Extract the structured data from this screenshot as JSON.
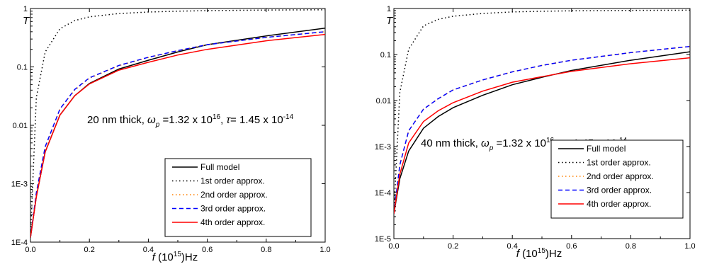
{
  "chart_data": [
    {
      "type": "line",
      "xlabel": "f (10^15)Hz",
      "ylabel": "T",
      "yscale": "log",
      "xlim": [
        0,
        1
      ],
      "ylim": [
        0.0001,
        1
      ],
      "xticks": [
        "0.0",
        "0.2",
        "0.4",
        "0.6",
        "0.8",
        "1.0"
      ],
      "yticks": [
        "1E-4",
        "1E-3",
        "0.01",
        "0.1",
        "1"
      ],
      "annotation": "20 nm thick, ωp =1.32 x 10^16, τ= 1.45 x 10^-14",
      "legend": "bottom-right",
      "x": [
        0.0,
        0.02,
        0.05,
        0.1,
        0.15,
        0.2,
        0.3,
        0.4,
        0.5,
        0.6,
        0.8,
        1.0
      ],
      "series": [
        {
          "name": "Full model",
          "color": "#000000",
          "dash": "solid",
          "values": [
            0.00012,
            0.0006,
            0.0035,
            0.015,
            0.032,
            0.052,
            0.092,
            0.13,
            0.18,
            0.24,
            0.34,
            0.46
          ]
        },
        {
          "name": "1st order approx.",
          "color": "#000000",
          "dash": "dot",
          "values": [
            0.00012,
            0.03,
            0.18,
            0.45,
            0.62,
            0.72,
            0.82,
            0.87,
            0.9,
            0.92,
            0.94,
            0.95
          ]
        },
        {
          "name": "2nd order approx.",
          "color": "#ff8000",
          "dash": "dot",
          "values": [
            0.00012,
            0.0007,
            0.0042,
            0.019,
            0.04,
            0.064,
            0.105,
            0.145,
            0.19,
            0.24,
            0.32,
            0.4
          ]
        },
        {
          "name": "3rd order approx.",
          "color": "#0000ff",
          "dash": "dash",
          "values": [
            0.00012,
            0.0007,
            0.0043,
            0.019,
            0.041,
            0.065,
            0.106,
            0.146,
            0.19,
            0.24,
            0.32,
            0.4
          ]
        },
        {
          "name": "4th order approx.",
          "color": "#ff0000",
          "dash": "solid",
          "values": [
            0.00012,
            0.0006,
            0.0035,
            0.015,
            0.032,
            0.051,
            0.088,
            0.12,
            0.16,
            0.2,
            0.28,
            0.36
          ]
        }
      ]
    },
    {
      "type": "line",
      "xlabel": "f (10^15)Hz",
      "ylabel": "T",
      "yscale": "log",
      "xlim": [
        0,
        1
      ],
      "ylim": [
        1e-05,
        1
      ],
      "xticks": [
        "0.0",
        "0.2",
        "0.4",
        "0.6",
        "0.8",
        "1.0"
      ],
      "yticks": [
        "1E-5",
        "1E-4",
        "1E-3",
        "0.01",
        "0.1",
        "1"
      ],
      "annotation": "40 nm thick, ωp =1.32 x 10^16, τ= 1.45 x 10^-14",
      "legend": "bottom-right",
      "x": [
        0.0,
        0.02,
        0.05,
        0.1,
        0.15,
        0.2,
        0.3,
        0.4,
        0.5,
        0.6,
        0.8,
        1.0
      ],
      "series": [
        {
          "name": "Full model",
          "color": "#000000",
          "dash": "solid",
          "values": [
            3.5e-05,
            0.0002,
            0.0008,
            0.0025,
            0.0045,
            0.007,
            0.013,
            0.022,
            0.032,
            0.045,
            0.075,
            0.115
          ]
        },
        {
          "name": "1st order approx.",
          "color": "#000000",
          "dash": "dot",
          "values": [
            3.5e-05,
            0.015,
            0.13,
            0.42,
            0.58,
            0.68,
            0.78,
            0.84,
            0.87,
            0.89,
            0.91,
            0.92
          ]
        },
        {
          "name": "2nd order approx.",
          "color": "#ff8000",
          "dash": "dot",
          "values": [
            3.5e-05,
            0.0004,
            0.0022,
            0.0065,
            0.011,
            0.017,
            0.028,
            0.042,
            0.058,
            0.075,
            0.11,
            0.15
          ]
        },
        {
          "name": "3rd order approx.",
          "color": "#0000ff",
          "dash": "dash",
          "values": [
            3.5e-05,
            0.0004,
            0.0022,
            0.0065,
            0.011,
            0.017,
            0.028,
            0.042,
            0.058,
            0.075,
            0.11,
            0.15
          ]
        },
        {
          "name": "4th order approx.",
          "color": "#ff0000",
          "dash": "solid",
          "values": [
            3.5e-05,
            0.00025,
            0.0012,
            0.0035,
            0.006,
            0.009,
            0.016,
            0.025,
            0.033,
            0.043,
            0.063,
            0.085
          ]
        }
      ]
    }
  ]
}
